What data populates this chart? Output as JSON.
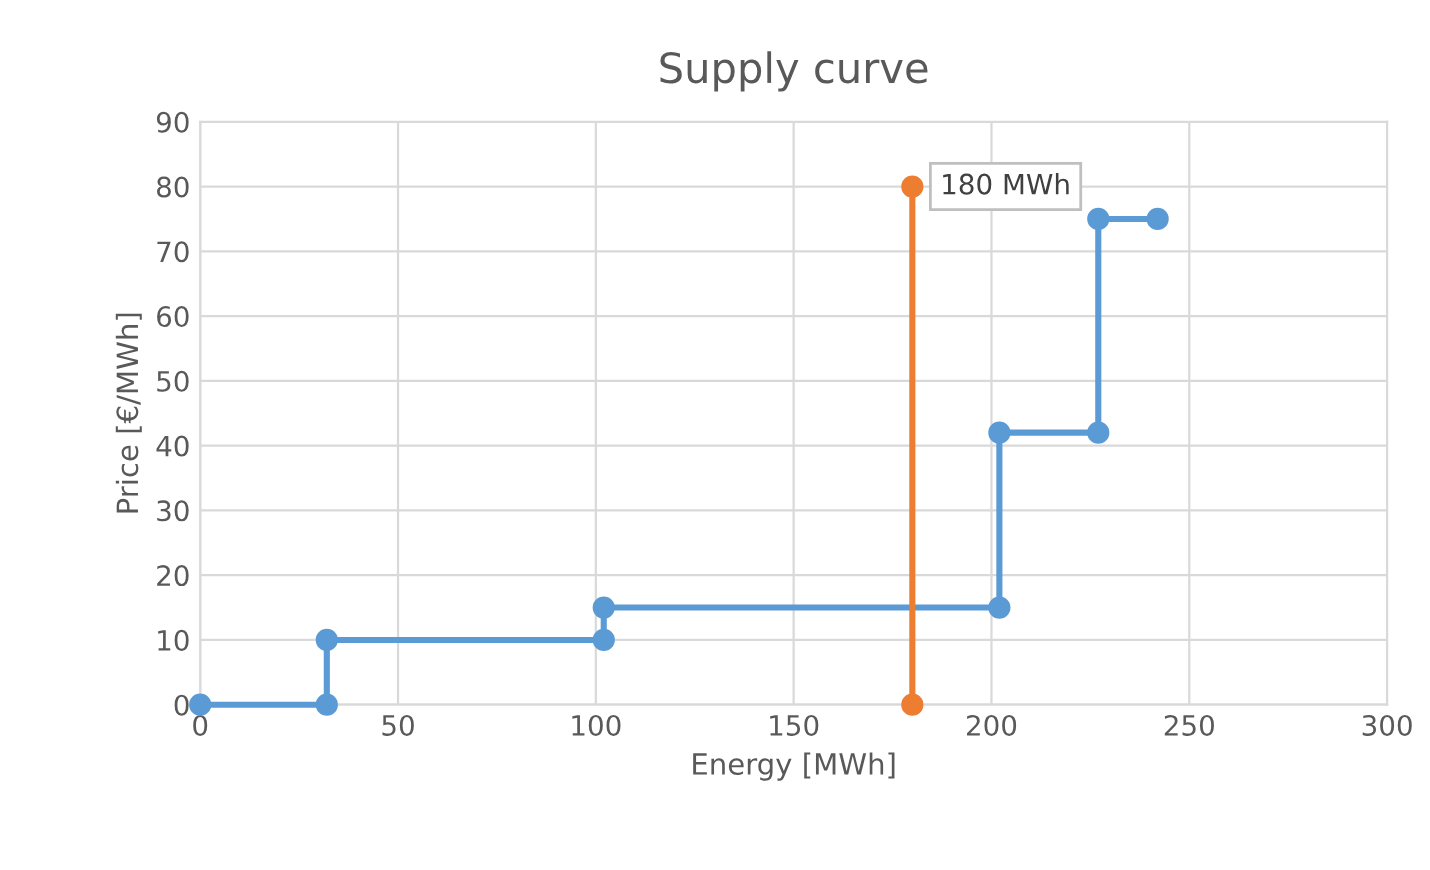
{
  "chart_data": {
    "type": "line",
    "title": "Supply curve",
    "xlabel": "Energy [MWh]",
    "ylabel": "Price [€/MWh]",
    "series": [
      {
        "color": "#5b9bd5",
        "x": [
          0,
          32,
          32,
          102,
          102,
          202,
          202,
          227,
          227,
          242
        ],
        "values": [
          0,
          0,
          10,
          10,
          15,
          15,
          42,
          42,
          75,
          75
        ]
      },
      {
        "color": "#ed7d31",
        "x": [
          180,
          180
        ],
        "values": [
          0,
          80
        ]
      }
    ],
    "annotations": [
      {
        "text": "180 MWh",
        "x": 180,
        "y": 80
      }
    ],
    "xlim": [
      0,
      300
    ],
    "xticks": [
      0,
      50,
      100,
      150,
      200,
      250,
      300
    ],
    "ylim": [
      0,
      90
    ],
    "yticks": [
      0,
      10,
      20,
      30,
      40,
      50,
      60,
      70,
      80,
      90
    ],
    "grid": true,
    "marker": "circle",
    "line_style": "solid"
  }
}
